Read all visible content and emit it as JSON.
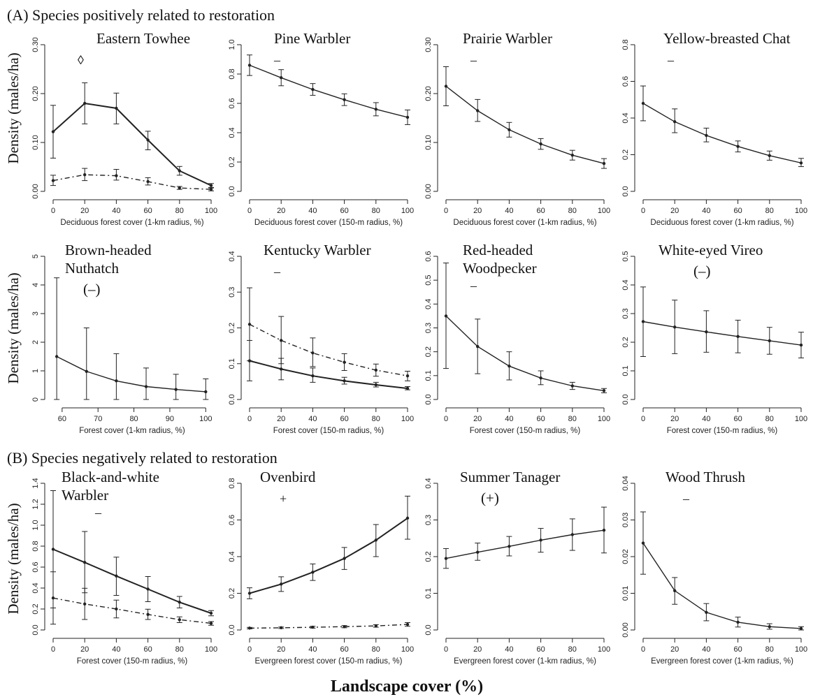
{
  "section_titles": {
    "a": "(A) Species positively related to restoration",
    "b": "(B) Species negatively related to restoration"
  },
  "ylabel": "Density (males/ha)",
  "global_xlabel": "Landscape cover (%)",
  "chart_data": [
    {
      "type": "line",
      "title": "Eastern Towhee",
      "symbol": "◊",
      "xlabel": "Deciduous forest cover (1-km radius, %)",
      "x": [
        0,
        20,
        40,
        60,
        80,
        100
      ],
      "ylim": [
        0,
        0.3
      ],
      "yticks": [
        "0.00",
        "0.10",
        "0.20",
        "0.30"
      ],
      "ytick_values": [
        0,
        0.1,
        0.2,
        0.3
      ],
      "series": [
        {
          "style": "solid",
          "values": [
            0.122,
            0.18,
            0.17,
            0.105,
            0.042,
            0.012
          ],
          "lower": [
            0.068,
            0.138,
            0.138,
            0.085,
            0.033,
            0.008
          ],
          "upper": [
            0.176,
            0.222,
            0.201,
            0.123,
            0.051,
            0.016
          ]
        },
        {
          "style": "dashed",
          "values": [
            0.022,
            0.034,
            0.032,
            0.02,
            0.007,
            0.004
          ],
          "lower": [
            0.012,
            0.022,
            0.023,
            0.013,
            0.004,
            0.001
          ],
          "upper": [
            0.033,
            0.047,
            0.045,
            0.028,
            0.01,
            0.007
          ]
        }
      ]
    },
    {
      "type": "line",
      "title": "Pine Warbler",
      "symbol": "–",
      "xlabel": "Deciduous forest cover (150-m radius, %)",
      "x": [
        0,
        20,
        40,
        60,
        80,
        100
      ],
      "ylim": [
        0,
        1.0
      ],
      "yticks": [
        "0.0",
        "0.2",
        "0.4",
        "0.6",
        "0.8",
        "1.0"
      ],
      "ytick_values": [
        0,
        0.2,
        0.4,
        0.6,
        0.8,
        1.0
      ],
      "series": [
        {
          "style": "solid",
          "values": [
            0.86,
            0.775,
            0.695,
            0.625,
            0.56,
            0.505
          ],
          "lower": [
            0.79,
            0.72,
            0.655,
            0.585,
            0.515,
            0.455
          ],
          "upper": [
            0.93,
            0.83,
            0.735,
            0.665,
            0.605,
            0.555
          ]
        }
      ]
    },
    {
      "type": "line",
      "title": "Prairie Warbler",
      "symbol": "–",
      "xlabel": "Deciduous forest cover (1-km radius, %)",
      "x": [
        0,
        20,
        40,
        60,
        80,
        100
      ],
      "ylim": [
        0,
        0.3
      ],
      "yticks": [
        "0.00",
        "0.10",
        "0.20",
        "0.30"
      ],
      "ytick_values": [
        0,
        0.1,
        0.2,
        0.3
      ],
      "series": [
        {
          "style": "solid",
          "values": [
            0.215,
            0.165,
            0.126,
            0.097,
            0.074,
            0.057
          ],
          "lower": [
            0.175,
            0.143,
            0.111,
            0.086,
            0.064,
            0.047
          ],
          "upper": [
            0.255,
            0.188,
            0.141,
            0.108,
            0.084,
            0.067
          ]
        }
      ]
    },
    {
      "type": "line",
      "title": "Yellow-breasted Chat",
      "symbol": "–",
      "xlabel": "Deciduous forest cover (1-km radius, %)",
      "x": [
        0,
        20,
        40,
        60,
        80,
        100
      ],
      "ylim": [
        0,
        0.8
      ],
      "yticks": [
        "0.0",
        "0.2",
        "0.4",
        "0.6",
        "0.8"
      ],
      "ytick_values": [
        0,
        0.2,
        0.4,
        0.6,
        0.8
      ],
      "series": [
        {
          "style": "solid",
          "values": [
            0.48,
            0.38,
            0.305,
            0.245,
            0.195,
            0.155
          ],
          "lower": [
            0.385,
            0.32,
            0.27,
            0.215,
            0.17,
            0.135
          ],
          "upper": [
            0.575,
            0.45,
            0.345,
            0.275,
            0.22,
            0.18
          ]
        }
      ]
    },
    {
      "type": "line",
      "title": "Brown-headed\nNuthatch",
      "symbol": "(–)",
      "xlabel": "Forest cover (1-km radius, %)",
      "x": [
        58.5,
        66.8,
        75.1,
        83.4,
        91.7,
        100
      ],
      "xlim": [
        57.5,
        101.5
      ],
      "xticks": [
        60,
        70,
        80,
        90,
        100
      ],
      "ylim": [
        0,
        5
      ],
      "yticks": [
        "0",
        "1",
        "2",
        "3",
        "4",
        "5"
      ],
      "ytick_values": [
        0,
        1,
        2,
        3,
        4,
        5
      ],
      "series": [
        {
          "style": "solid",
          "values": [
            1.5,
            0.98,
            0.65,
            0.45,
            0.35,
            0.27
          ],
          "lower": [
            0,
            0,
            0,
            0,
            0,
            0
          ],
          "upper": [
            4.25,
            2.5,
            1.6,
            1.1,
            0.88,
            0.72
          ]
        }
      ]
    },
    {
      "type": "line",
      "title": "Kentucky Warbler",
      "symbol": "–",
      "xlabel": "Forest cover (150-m radius, %)",
      "x": [
        0,
        20,
        40,
        60,
        80,
        100
      ],
      "ylim": [
        0,
        0.4
      ],
      "yticks": [
        "0.0",
        "0.1",
        "0.2",
        "0.3",
        "0.4"
      ],
      "ytick_values": [
        0,
        0.1,
        0.2,
        0.3,
        0.4
      ],
      "series": [
        {
          "style": "solid",
          "values": [
            0.108,
            0.085,
            0.066,
            0.052,
            0.041,
            0.031
          ],
          "lower": [
            0.052,
            0.055,
            0.048,
            0.043,
            0.035,
            0.027
          ],
          "upper": [
            0.165,
            0.115,
            0.088,
            0.062,
            0.048,
            0.036
          ]
        },
        {
          "style": "dashed",
          "values": [
            0.21,
            0.165,
            0.13,
            0.104,
            0.082,
            0.066
          ],
          "lower": [
            0.108,
            0.1,
            0.092,
            0.081,
            0.065,
            0.052
          ],
          "upper": [
            0.312,
            0.232,
            0.172,
            0.128,
            0.099,
            0.079
          ]
        }
      ]
    },
    {
      "type": "line",
      "title": "Red-headed\nWoodpecker",
      "symbol": "–",
      "xlabel": "Forest cover (150-m radius, %)",
      "x": [
        0,
        20,
        40,
        60,
        80,
        100
      ],
      "ylim": [
        0,
        0.6
      ],
      "yticks": [
        "0.0",
        "0.1",
        "0.2",
        "0.3",
        "0.4",
        "0.5",
        "0.6"
      ],
      "ytick_values": [
        0,
        0.1,
        0.2,
        0.3,
        0.4,
        0.5,
        0.6
      ],
      "series": [
        {
          "style": "solid",
          "values": [
            0.35,
            0.222,
            0.14,
            0.09,
            0.057,
            0.037
          ],
          "lower": [
            0.13,
            0.108,
            0.082,
            0.062,
            0.042,
            0.028
          ],
          "upper": [
            0.572,
            0.337,
            0.2,
            0.12,
            0.072,
            0.046
          ]
        }
      ]
    },
    {
      "type": "line",
      "title": "White-eyed Vireo",
      "symbol": "(–)",
      "xlabel": "Forest cover (150-m radius, %)",
      "x": [
        0,
        20,
        40,
        60,
        80,
        100
      ],
      "ylim": [
        0,
        0.5
      ],
      "yticks": [
        "0.0",
        "0.1",
        "0.2",
        "0.3",
        "0.4",
        "0.5"
      ],
      "ytick_values": [
        0,
        0.1,
        0.2,
        0.3,
        0.4,
        0.5
      ],
      "series": [
        {
          "style": "solid",
          "values": [
            0.272,
            0.253,
            0.236,
            0.22,
            0.205,
            0.19
          ],
          "lower": [
            0.15,
            0.16,
            0.165,
            0.163,
            0.158,
            0.145
          ],
          "upper": [
            0.393,
            0.347,
            0.31,
            0.277,
            0.252,
            0.235
          ]
        }
      ]
    },
    {
      "type": "line",
      "title": "Black-and-white\nWarbler",
      "symbol": "–",
      "xlabel": "Forest cover (150-m radius, %)",
      "x": [
        0,
        20,
        40,
        60,
        80,
        100
      ],
      "ylim": [
        0,
        1.4
      ],
      "yticks": [
        "0.0",
        "0.2",
        "0.4",
        "0.6",
        "0.8",
        "1.0",
        "1.2",
        "1.4"
      ],
      "ytick_values": [
        0,
        0.2,
        0.4,
        0.6,
        0.8,
        1.0,
        1.2,
        1.4
      ],
      "series": [
        {
          "style": "solid",
          "values": [
            0.77,
            0.645,
            0.515,
            0.39,
            0.265,
            0.16
          ],
          "lower": [
            0.21,
            0.355,
            0.33,
            0.27,
            0.21,
            0.135
          ],
          "upper": [
            1.33,
            0.94,
            0.695,
            0.51,
            0.32,
            0.185
          ]
        },
        {
          "style": "dashed",
          "values": [
            0.305,
            0.248,
            0.2,
            0.148,
            0.098,
            0.063
          ],
          "lower": [
            0.055,
            0.1,
            0.115,
            0.1,
            0.07,
            0.045
          ],
          "upper": [
            0.555,
            0.398,
            0.285,
            0.198,
            0.125,
            0.08
          ]
        }
      ]
    },
    {
      "type": "line",
      "title": "Ovenbird",
      "symbol": "+",
      "xlabel": "Evergreen forest cover (150-m radius, %)",
      "x": [
        0,
        20,
        40,
        60,
        80,
        100
      ],
      "ylim": [
        0,
        0.8
      ],
      "yticks": [
        "0.0",
        "0.2",
        "0.4",
        "0.6",
        "0.8"
      ],
      "ytick_values": [
        0,
        0.2,
        0.4,
        0.6,
        0.8
      ],
      "series": [
        {
          "style": "solid",
          "values": [
            0.2,
            0.25,
            0.315,
            0.39,
            0.49,
            0.61
          ],
          "lower": [
            0.17,
            0.21,
            0.27,
            0.33,
            0.4,
            0.495
          ],
          "upper": [
            0.23,
            0.29,
            0.36,
            0.45,
            0.575,
            0.73
          ]
        },
        {
          "style": "dashed",
          "values": [
            0.01,
            0.012,
            0.015,
            0.018,
            0.022,
            0.03
          ],
          "lower": [
            0.006,
            0.008,
            0.01,
            0.012,
            0.015,
            0.02
          ],
          "upper": [
            0.014,
            0.016,
            0.02,
            0.024,
            0.029,
            0.04
          ]
        }
      ]
    },
    {
      "type": "line",
      "title": "Summer Tanager",
      "symbol": "(+)",
      "xlabel": "Evergreen forest cover (1-km radius, %)",
      "x": [
        0,
        20,
        40,
        60,
        80,
        100
      ],
      "ylim": [
        0,
        0.4
      ],
      "yticks": [
        "0.0",
        "0.1",
        "0.2",
        "0.3",
        "0.4"
      ],
      "ytick_values": [
        0,
        0.1,
        0.2,
        0.3,
        0.4
      ],
      "series": [
        {
          "style": "solid",
          "values": [
            0.195,
            0.212,
            0.228,
            0.245,
            0.26,
            0.272
          ],
          "lower": [
            0.168,
            0.19,
            0.202,
            0.212,
            0.217,
            0.21
          ],
          "upper": [
            0.222,
            0.237,
            0.255,
            0.277,
            0.303,
            0.335
          ]
        }
      ]
    },
    {
      "type": "line",
      "title": "Wood Thrush",
      "symbol": "–",
      "xlabel": "Evergreen forest cover (1-km radius, %)",
      "x": [
        0,
        20,
        40,
        60,
        80,
        100
      ],
      "ylim": [
        0,
        0.04
      ],
      "yticks": [
        "0.00",
        "0.01",
        "0.02",
        "0.03",
        "0.04"
      ],
      "ytick_values": [
        0,
        0.01,
        0.02,
        0.03,
        0.04
      ],
      "series": [
        {
          "style": "solid",
          "values": [
            0.0237,
            0.0107,
            0.0048,
            0.0021,
            0.0009,
            0.0004
          ],
          "lower": [
            0.0152,
            0.007,
            0.0025,
            0.0008,
            0.0002,
            0.0
          ],
          "upper": [
            0.0322,
            0.0143,
            0.0072,
            0.0035,
            0.0017,
            0.0009
          ]
        }
      ]
    }
  ]
}
